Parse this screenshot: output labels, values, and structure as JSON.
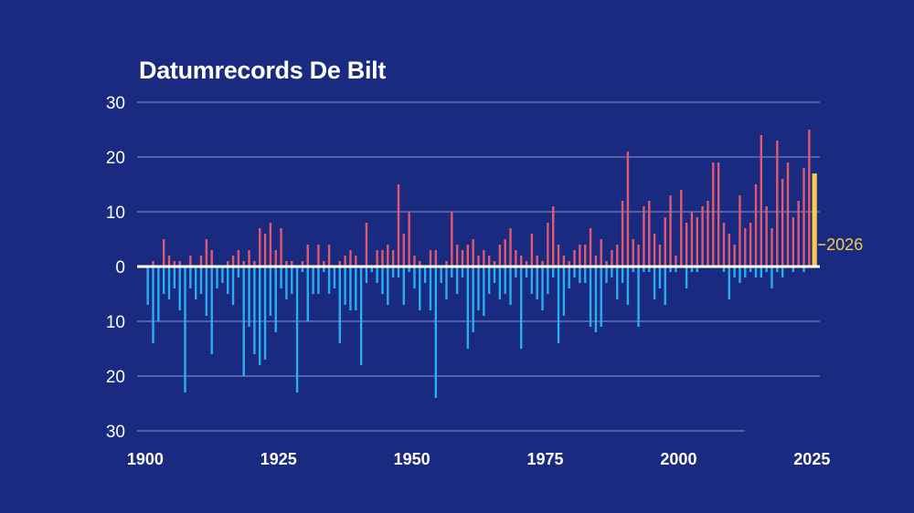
{
  "colors": {
    "background": "#1a2a80",
    "warm": "#e0596e",
    "cold": "#27aef0",
    "highlight": "#f5cb4a",
    "grid": "#8d96c8",
    "text": "#ffffff"
  },
  "chart_data": {
    "type": "bar",
    "title": "Datumrecords De Bilt",
    "xlabel": "",
    "ylabel": "",
    "xlim": [
      1899,
      2027
    ],
    "ylim": [
      -30,
      30
    ],
    "y_ticks": [
      30,
      20,
      10,
      0,
      10,
      20,
      30
    ],
    "x_ticks": [
      "1900",
      "1925",
      "1950",
      "1975",
      "2000",
      "2025"
    ],
    "grid": true,
    "years": [
      1901,
      1902,
      1903,
      1904,
      1905,
      1906,
      1907,
      1908,
      1909,
      1910,
      1911,
      1912,
      1913,
      1914,
      1915,
      1916,
      1917,
      1918,
      1919,
      1920,
      1921,
      1922,
      1923,
      1924,
      1925,
      1926,
      1927,
      1928,
      1929,
      1930,
      1931,
      1932,
      1933,
      1934,
      1935,
      1936,
      1937,
      1938,
      1939,
      1940,
      1941,
      1942,
      1943,
      1944,
      1945,
      1946,
      1947,
      1948,
      1949,
      1950,
      1951,
      1952,
      1953,
      1954,
      1955,
      1956,
      1957,
      1958,
      1959,
      1960,
      1961,
      1962,
      1963,
      1964,
      1965,
      1966,
      1967,
      1968,
      1969,
      1970,
      1971,
      1972,
      1973,
      1974,
      1975,
      1976,
      1977,
      1978,
      1979,
      1980,
      1981,
      1982,
      1983,
      1984,
      1985,
      1986,
      1987,
      1988,
      1989,
      1990,
      1991,
      1992,
      1993,
      1994,
      1995,
      1996,
      1997,
      1998,
      1999,
      2000,
      2001,
      2002,
      2003,
      2004,
      2005,
      2006,
      2007,
      2008,
      2009,
      2010,
      2011,
      2012,
      2013,
      2014,
      2015,
      2016,
      2017,
      2018,
      2019,
      2020,
      2021,
      2022,
      2023,
      2024,
      2025
    ],
    "warm_records": [
      0,
      1,
      0,
      5,
      2,
      1,
      1,
      0,
      2,
      0,
      2,
      5,
      3,
      0,
      0,
      1,
      2,
      3,
      1,
      3,
      1,
      7,
      6,
      8,
      3,
      7,
      1,
      1,
      0,
      1,
      4,
      0,
      4,
      1,
      4,
      0,
      1,
      2,
      3,
      2,
      0,
      8,
      0,
      3,
      3,
      4,
      3,
      15,
      6,
      10,
      2,
      1,
      0,
      3,
      3,
      0,
      1,
      10,
      4,
      3,
      4,
      5,
      2,
      3,
      2,
      1,
      4,
      5,
      7,
      3,
      2,
      1,
      6,
      2,
      1,
      8,
      11,
      4,
      2,
      1,
      3,
      4,
      4,
      7,
      2,
      5,
      1,
      3,
      4,
      12,
      21,
      5,
      4,
      11,
      12,
      6,
      4,
      9,
      13,
      2,
      14,
      8,
      10,
      9,
      11,
      12,
      19,
      19,
      8,
      6,
      4,
      13,
      7,
      8,
      15,
      24,
      11,
      7,
      23,
      16,
      19,
      9,
      12,
      18,
      25
    ],
    "cold_records": [
      7,
      14,
      10,
      5,
      6,
      4,
      8,
      23,
      4,
      6,
      5,
      9,
      16,
      4,
      3,
      5,
      7,
      2,
      20,
      11,
      16,
      18,
      17,
      9,
      12,
      4,
      6,
      5,
      23,
      1,
      10,
      5,
      5,
      1,
      5,
      4,
      14,
      7,
      8,
      8,
      18,
      3,
      1,
      3,
      5,
      7,
      2,
      2,
      7,
      1,
      4,
      8,
      3,
      8,
      24,
      3,
      6,
      2,
      5,
      2,
      15,
      12,
      8,
      9,
      5,
      3,
      6,
      5,
      7,
      2,
      15,
      2,
      5,
      6,
      8,
      5,
      2,
      14,
      9,
      4,
      2,
      3,
      3,
      11,
      12,
      11,
      3,
      2,
      6,
      3,
      7,
      1,
      11,
      1,
      1,
      6,
      4,
      7,
      1,
      1,
      0,
      4,
      1,
      1,
      0,
      0,
      0,
      0,
      1,
      6,
      2,
      3,
      2,
      1,
      2,
      2,
      1,
      4,
      1,
      2,
      0,
      1,
      0,
      1,
      0
    ],
    "year_2026": {
      "year": 2026,
      "value": 17,
      "label": "2026"
    }
  }
}
